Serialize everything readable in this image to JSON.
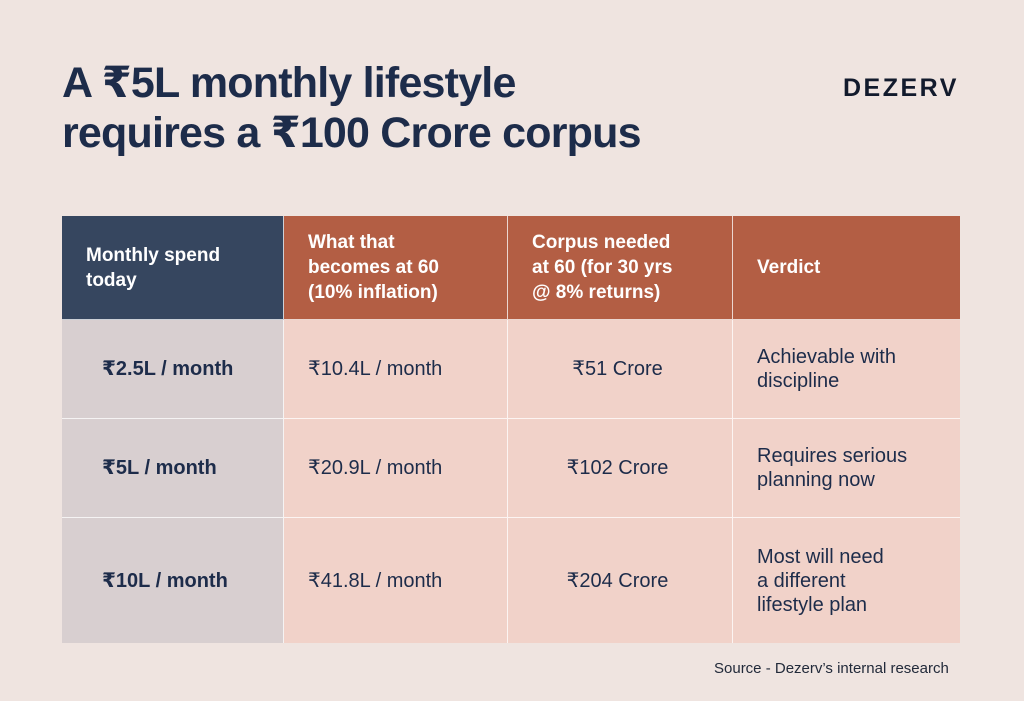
{
  "title": {
    "line1": "A ₹5L monthly lifestyle",
    "line2": "requires a ₹100 Crore corpus"
  },
  "brand": "DEZERV",
  "table": {
    "headers": [
      [
        "Monthly spend",
        "today"
      ],
      [
        "What that",
        "becomes at 60",
        "(10% inflation)"
      ],
      [
        "Corpus needed",
        "at 60 (for 30 yrs",
        "@ 8% returns)"
      ],
      [
        "Verdict"
      ]
    ],
    "rows": [
      {
        "spend": "₹2.5L / month",
        "at60": "₹10.4L / month",
        "corpus": "₹51 Crore",
        "verdict": [
          "Achievable with",
          "discipline"
        ]
      },
      {
        "spend": "₹5L / month",
        "at60": "₹20.9L / month",
        "corpus": "₹102 Crore",
        "verdict": [
          "Requires serious",
          "planning now"
        ]
      },
      {
        "spend": "₹10L / month",
        "at60": "₹41.8L / month",
        "corpus": "₹204 Crore",
        "verdict": [
          "Most will need",
          "a different",
          "lifestyle plan"
        ]
      }
    ]
  },
  "source": "Source - Dezerv’s internal research",
  "colors": {
    "background": "#efe4e0",
    "title": "#1d2c4a",
    "header_navy": "#36465f",
    "header_rust": "#b35e44",
    "first_column": "#d8cfd0",
    "body_cells": "#f1d2c9"
  }
}
